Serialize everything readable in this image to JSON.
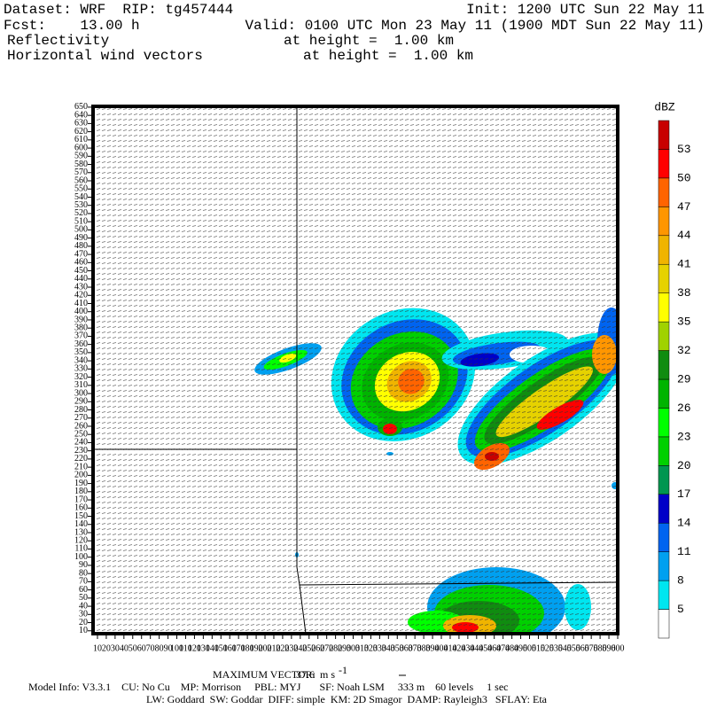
{
  "chart_data": {
    "type": "map",
    "header": {
      "dataset": "Dataset: WRF  RIP: tg457444",
      "init": "Init: 1200 UTC Sun 22 May 11",
      "fcst": "Fcst:    13.00 h",
      "valid": "Valid: 0100 UTC Mon 23 May 11 (1900 MDT Sun 22 May 11)",
      "field1": "Reflectivity",
      "field1_level": "at height =  1.00 km",
      "field2": "Horizontal wind vectors",
      "field2_level": "at height =  1.00 km"
    },
    "xlim": [
      5,
      600
    ],
    "ylim": [
      6.5,
      651
    ],
    "xticks": [
      10,
      20,
      30,
      40,
      50,
      60,
      70,
      80,
      90,
      100,
      110,
      120,
      130,
      140,
      150,
      160,
      170,
      180,
      190,
      200,
      210,
      220,
      230,
      240,
      250,
      260,
      270,
      280,
      290,
      300,
      310,
      320,
      330,
      340,
      350,
      360,
      370,
      380,
      390,
      400,
      410,
      420,
      430,
      440,
      450,
      460,
      470,
      480,
      490,
      500,
      510,
      520,
      530,
      540,
      550,
      560,
      570,
      580,
      590,
      600
    ],
    "yticks": [
      10,
      20,
      30,
      40,
      50,
      60,
      70,
      80,
      90,
      100,
      110,
      120,
      130,
      140,
      150,
      160,
      170,
      180,
      190,
      200,
      210,
      220,
      230,
      240,
      250,
      260,
      270,
      280,
      290,
      300,
      310,
      320,
      330,
      340,
      350,
      360,
      370,
      380,
      390,
      400,
      410,
      420,
      430,
      440,
      450,
      460,
      470,
      480,
      490,
      500,
      510,
      520,
      530,
      540,
      550,
      560,
      570,
      580,
      590,
      600,
      610,
      620,
      630,
      640,
      650
    ],
    "colorbar": {
      "unit": "dBZ",
      "levels": [
        5,
        8,
        11,
        14,
        17,
        20,
        23,
        26,
        29,
        32,
        35,
        38,
        41,
        44,
        47,
        50,
        53
      ],
      "colors": [
        "#ffffff",
        "#00e6f0",
        "#00a0f0",
        "#0064f0",
        "#0000c8",
        "#009650",
        "#00d000",
        "#00ff00",
        "#00b400",
        "#108c10",
        "#a0d200",
        "#ffff00",
        "#e6d200",
        "#f0b400",
        "#ff9600",
        "#ff6400",
        "#ff0000",
        "#c80000"
      ]
    },
    "footer": {
      "max_vector_label": "MAXIMUM VECTOR:",
      "max_vector_value": "37.6",
      "max_vector_unit": "m s",
      "max_vector_exponent": "-1",
      "model_info": "Model Info: V3.3.1    CU: No Cu    MP: Morrison     PBL: MYJ       SF: Noah LSM     333 m    60 levels     1 sec",
      "model_info2": "LW: Goddard  SW: Goddar  DIFF: simple  KM: 2D Smagor  DAMP: Rayleigh3   SFLAY: Eta"
    }
  }
}
